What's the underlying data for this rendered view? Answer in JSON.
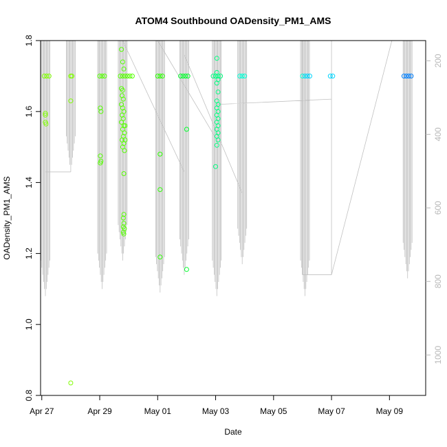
{
  "chart_data": {
    "type": "scatter",
    "title": "ATOM4 Southbound OADensity_PM1_AMS",
    "xlabel": "Date",
    "ylabel": "OADensity_PM1_AMS",
    "x_range_days": [
      "2016-04-26T23:00",
      "2016-05-10T06:00"
    ],
    "ylim": [
      0.8,
      1.8
    ],
    "y_ticks": [
      "0.8",
      "1.0",
      "1.2",
      "1.4",
      "1.6",
      "1.8"
    ],
    "x_ticks": [
      {
        "date": "2016-04-27",
        "label": "Apr 27"
      },
      {
        "date": "2016-04-29",
        "label": "Apr 29"
      },
      {
        "date": "2016-05-01",
        "label": "May 01"
      },
      {
        "date": "2016-05-03",
        "label": "May 03"
      },
      {
        "date": "2016-05-05",
        "label": "May 05"
      },
      {
        "date": "2016-05-07",
        "label": "May 07"
      },
      {
        "date": "2016-05-09",
        "label": "May 09"
      }
    ],
    "right_axis": {
      "ticks": [
        "200",
        "400",
        "600",
        "800",
        "1000"
      ],
      "color": "#b8b8b8",
      "reversed": true,
      "range": [
        145,
        1110
      ]
    },
    "point_colors": [
      "#80ff00",
      "#55ff00",
      "#2bff00",
      "#00ff2b",
      "#00ff80",
      "#00ffd5",
      "#00d5ff",
      "#0080ff"
    ],
    "line_color": "#c0c0c0",
    "points": [
      {
        "x": "2016-04-27T02:00",
        "y": 1.7,
        "c": 0
      },
      {
        "x": "2016-04-27T04:00",
        "y": 1.7,
        "c": 0
      },
      {
        "x": "2016-04-27T06:00",
        "y": 1.7,
        "c": 0
      },
      {
        "x": "2016-04-27T03:00",
        "y": 1.59,
        "c": 0
      },
      {
        "x": "2016-04-27T03:00",
        "y": 1.57,
        "c": 0
      },
      {
        "x": "2016-04-27T03:30",
        "y": 1.565,
        "c": 0
      },
      {
        "x": "2016-04-27T03:00",
        "y": 1.595,
        "c": 0
      },
      {
        "x": "2016-04-28T00:00",
        "y": 1.7,
        "c": 0
      },
      {
        "x": "2016-04-28T01:00",
        "y": 1.7,
        "c": 0
      },
      {
        "x": "2016-04-28T00:00",
        "y": 1.63,
        "c": 0
      },
      {
        "x": "2016-04-28T00:00",
        "y": 0.835,
        "c": 0
      },
      {
        "x": "2016-04-29T00:00",
        "y": 1.7,
        "c": 1
      },
      {
        "x": "2016-04-29T02:00",
        "y": 1.7,
        "c": 1
      },
      {
        "x": "2016-04-29T04:00",
        "y": 1.7,
        "c": 1
      },
      {
        "x": "2016-04-29T00:30",
        "y": 1.61,
        "c": 1
      },
      {
        "x": "2016-04-29T01:00",
        "y": 1.6,
        "c": 1
      },
      {
        "x": "2016-04-29T00:30",
        "y": 1.475,
        "c": 1
      },
      {
        "x": "2016-04-29T01:00",
        "y": 1.46,
        "c": 1
      },
      {
        "x": "2016-04-29T00:30",
        "y": 1.455,
        "c": 1
      },
      {
        "x": "2016-04-29T17:00",
        "y": 1.7,
        "c": 1
      },
      {
        "x": "2016-04-29T19:00",
        "y": 1.7,
        "c": 1
      },
      {
        "x": "2016-04-29T21:00",
        "y": 1.7,
        "c": 1
      },
      {
        "x": "2016-04-29T23:00",
        "y": 1.7,
        "c": 1
      },
      {
        "x": "2016-04-30T01:00",
        "y": 1.7,
        "c": 1
      },
      {
        "x": "2016-04-30T03:00",
        "y": 1.7,
        "c": 1
      },
      {
        "x": "2016-04-29T18:00",
        "y": 1.775,
        "c": 1
      },
      {
        "x": "2016-04-29T19:00",
        "y": 1.74,
        "c": 1
      },
      {
        "x": "2016-04-29T20:00",
        "y": 1.72,
        "c": 1
      },
      {
        "x": "2016-04-29T18:00",
        "y": 1.665,
        "c": 1
      },
      {
        "x": "2016-04-29T19:00",
        "y": 1.66,
        "c": 1
      },
      {
        "x": "2016-04-29T18:30",
        "y": 1.645,
        "c": 1
      },
      {
        "x": "2016-04-29T19:30",
        "y": 1.635,
        "c": 1
      },
      {
        "x": "2016-04-29T18:00",
        "y": 1.62,
        "c": 1
      },
      {
        "x": "2016-04-29T19:00",
        "y": 1.61,
        "c": 1
      },
      {
        "x": "2016-04-29T20:00",
        "y": 1.6,
        "c": 1
      },
      {
        "x": "2016-04-29T18:30",
        "y": 1.59,
        "c": 1
      },
      {
        "x": "2016-04-29T19:30",
        "y": 1.58,
        "c": 1
      },
      {
        "x": "2016-04-29T18:00",
        "y": 1.57,
        "c": 1
      },
      {
        "x": "2016-04-29T20:00",
        "y": 1.56,
        "c": 1
      },
      {
        "x": "2016-04-29T19:00",
        "y": 1.55,
        "c": 1
      },
      {
        "x": "2016-04-29T20:30",
        "y": 1.54,
        "c": 1
      },
      {
        "x": "2016-04-29T19:30",
        "y": 1.53,
        "c": 1
      },
      {
        "x": "2016-04-29T18:30",
        "y": 1.52,
        "c": 1
      },
      {
        "x": "2016-04-29T20:00",
        "y": 1.51,
        "c": 1
      },
      {
        "x": "2016-04-29T19:00",
        "y": 1.5,
        "c": 1
      },
      {
        "x": "2016-04-29T20:30",
        "y": 1.49,
        "c": 1
      },
      {
        "x": "2016-04-29T21:00",
        "y": 1.56,
        "c": 1
      },
      {
        "x": "2016-04-29T21:00",
        "y": 1.52,
        "c": 1
      },
      {
        "x": "2016-04-29T20:00",
        "y": 1.425,
        "c": 1
      },
      {
        "x": "2016-04-29T20:00",
        "y": 1.31,
        "c": 1
      },
      {
        "x": "2016-04-29T19:30",
        "y": 1.3,
        "c": 1
      },
      {
        "x": "2016-04-29T20:00",
        "y": 1.285,
        "c": 1
      },
      {
        "x": "2016-04-29T19:30",
        "y": 1.275,
        "c": 1
      },
      {
        "x": "2016-04-29T20:30",
        "y": 1.27,
        "c": 1
      },
      {
        "x": "2016-04-29T19:30",
        "y": 1.26,
        "c": 1
      },
      {
        "x": "2016-04-29T20:00",
        "y": 1.255,
        "c": 1
      },
      {
        "x": "2016-05-01T00:00",
        "y": 1.7,
        "c": 2
      },
      {
        "x": "2016-05-01T02:00",
        "y": 1.7,
        "c": 2
      },
      {
        "x": "2016-05-01T04:00",
        "y": 1.7,
        "c": 2
      },
      {
        "x": "2016-05-01T02:00",
        "y": 1.48,
        "c": 2
      },
      {
        "x": "2016-05-01T02:00",
        "y": 1.38,
        "c": 2
      },
      {
        "x": "2016-05-01T02:00",
        "y": 1.19,
        "c": 2
      },
      {
        "x": "2016-05-01T19:00",
        "y": 1.7,
        "c": 3
      },
      {
        "x": "2016-05-01T21:00",
        "y": 1.7,
        "c": 3
      },
      {
        "x": "2016-05-01T23:00",
        "y": 1.7,
        "c": 3
      },
      {
        "x": "2016-05-02T01:00",
        "y": 1.7,
        "c": 3
      },
      {
        "x": "2016-05-02T00:00",
        "y": 1.55,
        "c": 3
      },
      {
        "x": "2016-05-02T00:00",
        "y": 1.155,
        "c": 3
      },
      {
        "x": "2016-05-02T22:00",
        "y": 1.7,
        "c": 4
      },
      {
        "x": "2016-05-03T00:00",
        "y": 1.7,
        "c": 4
      },
      {
        "x": "2016-05-03T02:00",
        "y": 1.7,
        "c": 4
      },
      {
        "x": "2016-05-03T04:00",
        "y": 1.7,
        "c": 4
      },
      {
        "x": "2016-05-03T01:00",
        "y": 1.75,
        "c": 4
      },
      {
        "x": "2016-05-03T01:00",
        "y": 1.71,
        "c": 4
      },
      {
        "x": "2016-05-03T02:00",
        "y": 1.69,
        "c": 4
      },
      {
        "x": "2016-05-03T01:00",
        "y": 1.68,
        "c": 4
      },
      {
        "x": "2016-05-03T02:00",
        "y": 1.655,
        "c": 4
      },
      {
        "x": "2016-05-03T01:00",
        "y": 1.63,
        "c": 4
      },
      {
        "x": "2016-05-03T02:00",
        "y": 1.62,
        "c": 4
      },
      {
        "x": "2016-05-03T01:00",
        "y": 1.61,
        "c": 4
      },
      {
        "x": "2016-05-03T02:00",
        "y": 1.6,
        "c": 4
      },
      {
        "x": "2016-05-03T01:00",
        "y": 1.59,
        "c": 4
      },
      {
        "x": "2016-05-03T02:00",
        "y": 1.58,
        "c": 4
      },
      {
        "x": "2016-05-03T01:00",
        "y": 1.57,
        "c": 4
      },
      {
        "x": "2016-05-03T02:00",
        "y": 1.56,
        "c": 4
      },
      {
        "x": "2016-05-03T01:00",
        "y": 1.55,
        "c": 4
      },
      {
        "x": "2016-05-03T02:00",
        "y": 1.54,
        "c": 4
      },
      {
        "x": "2016-05-03T01:00",
        "y": 1.53,
        "c": 4
      },
      {
        "x": "2016-05-03T02:00",
        "y": 1.52,
        "c": 4
      },
      {
        "x": "2016-05-03T01:00",
        "y": 1.505,
        "c": 4
      },
      {
        "x": "2016-05-03T00:00",
        "y": 1.445,
        "c": 4
      },
      {
        "x": "2016-05-03T20:00",
        "y": 1.7,
        "c": 5
      },
      {
        "x": "2016-05-03T22:00",
        "y": 1.7,
        "c": 5
      },
      {
        "x": "2016-05-04T00:00",
        "y": 1.7,
        "c": 5
      },
      {
        "x": "2016-05-06T00:00",
        "y": 1.7,
        "c": 5
      },
      {
        "x": "2016-05-06T02:00",
        "y": 1.7,
        "c": 6
      },
      {
        "x": "2016-05-06T04:00",
        "y": 1.7,
        "c": 6
      },
      {
        "x": "2016-05-06T06:00",
        "y": 1.7,
        "c": 6
      },
      {
        "x": "2016-05-06T23:00",
        "y": 1.7,
        "c": 6
      },
      {
        "x": "2016-05-07T01:00",
        "y": 1.7,
        "c": 6
      },
      {
        "x": "2016-05-09T12:00",
        "y": 1.7,
        "c": 7
      },
      {
        "x": "2016-05-09T14:00",
        "y": 1.7,
        "c": 7
      },
      {
        "x": "2016-05-09T16:00",
        "y": 1.7,
        "c": 7
      },
      {
        "x": "2016-05-09T18:00",
        "y": 1.7,
        "c": 7
      }
    ]
  }
}
